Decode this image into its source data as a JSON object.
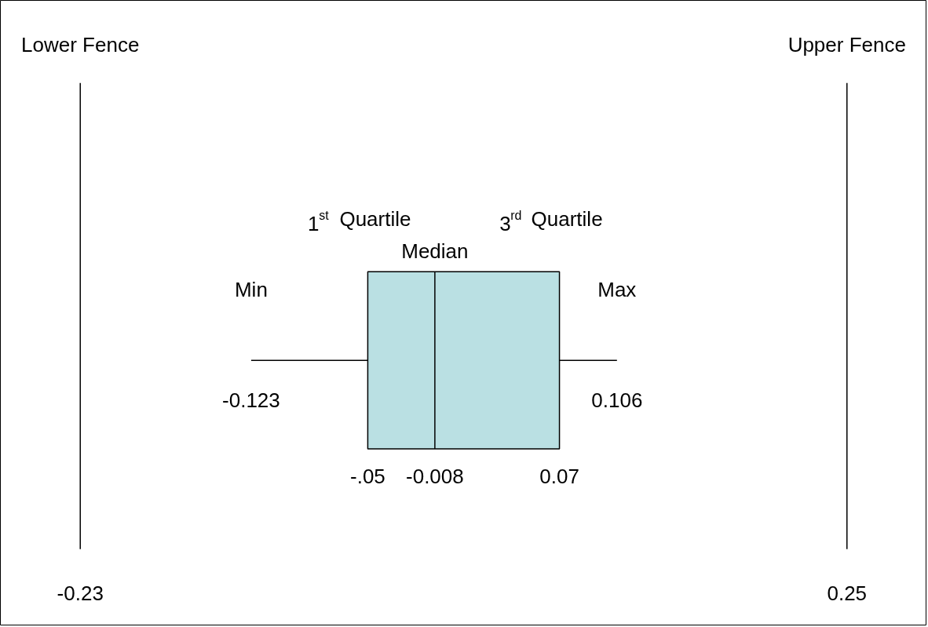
{
  "chart_data": {
    "type": "box",
    "orientation": "horizontal",
    "categories": [
      null
    ],
    "color": "#bae0e3",
    "boxes": [
      {
        "low": -0.123,
        "q1": -0.05,
        "median": -0.008,
        "q3": 0.07,
        "high": 0.106
      }
    ],
    "ref_lines": [
      {
        "axis": "x",
        "value": -0.23,
        "label": "Lower Fence"
      },
      {
        "axis": "x",
        "value": 0.25,
        "label": "Upper Fence"
      }
    ],
    "annotations": [
      "Min",
      "1$^{st}$ Quartile",
      "Median",
      "3$^{rd}$ Quartile",
      "Max",
      "-0.23",
      "0.25",
      "-0.123",
      "0.106"
    ],
    "xlim": [
      -0.28,
      0.3
    ],
    "xticks": [
      {
        "value": -0.05,
        "label": "-.05"
      },
      {
        "value": -0.008,
        "label": "-0.008"
      },
      {
        "value": 0.07,
        "label": "0.07"
      }
    ],
    "tick_labels": "x"
  }
}
